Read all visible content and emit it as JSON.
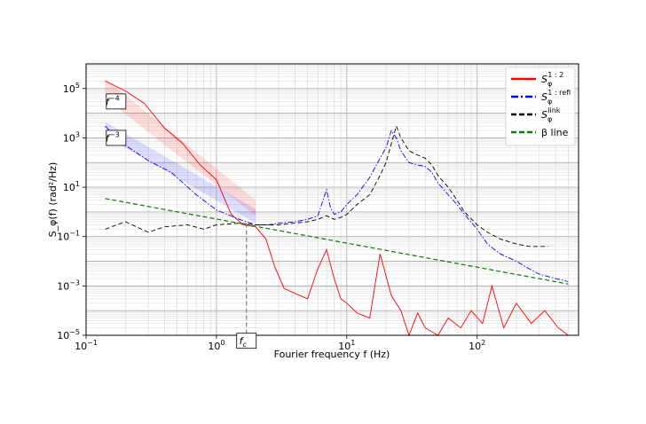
{
  "chart_data": {
    "type": "line",
    "title": "",
    "xlabel": "Fourier frequency f (Hz)",
    "ylabel": "S_φ(f) (rad²/Hz)",
    "xscale": "log",
    "yscale": "log",
    "xlim": [
      0.1,
      600
    ],
    "ylim": [
      1e-05,
      1000000
    ],
    "grid": true,
    "legend_position": "top-right",
    "x_ticks": [
      {
        "value": 0.1,
        "base": "10",
        "exp": "−1"
      },
      {
        "value": 1,
        "base": "10",
        "exp": "0"
      },
      {
        "value": 10,
        "base": "10",
        "exp": "1"
      },
      {
        "value": 100,
        "base": "10",
        "exp": "2"
      }
    ],
    "y_ticks": [
      {
        "value": 1e-05,
        "base": "10",
        "exp": "−5"
      },
      {
        "value": 0.001,
        "base": "10",
        "exp": "−3"
      },
      {
        "value": 0.1,
        "base": "10",
        "exp": "−1"
      },
      {
        "value": 10,
        "base": "10",
        "exp": "1"
      },
      {
        "value": 1000,
        "base": "10",
        "exp": "3"
      },
      {
        "value": 100000,
        "base": "10",
        "exp": "5"
      }
    ],
    "series": [
      {
        "name": "S_φ^{1:2}",
        "legend_main": "S",
        "legend_sub": "φ",
        "legend_sup": "1 : 2",
        "color": "#ff0000",
        "style": "solid",
        "x": [
          0.14,
          0.2,
          0.28,
          0.4,
          0.55,
          0.75,
          1.0,
          1.3,
          1.6,
          2.0,
          2.4,
          2.8,
          3.3,
          4.0,
          5.0,
          6.0,
          7.0,
          8.0,
          9.0,
          10,
          12,
          15,
          18,
          22,
          26,
          30,
          35,
          40,
          50,
          60,
          75,
          90,
          110,
          130,
          160,
          200,
          260,
          330,
          420,
          500
        ],
        "y": [
          200000,
          80000,
          25000,
          2500,
          600,
          80,
          20,
          0.8,
          0.3,
          0.25,
          0.08,
          0.006,
          0.0008,
          0.0005,
          0.0003,
          0.005,
          0.03,
          0.002,
          0.0003,
          0.0002,
          8e-05,
          5e-05,
          0.02,
          0.0004,
          0.0001,
          1e-05,
          8e-05,
          2e-05,
          1e-05,
          5e-05,
          2e-05,
          0.0001,
          3e-05,
          0.001,
          2e-05,
          0.0002,
          3e-05,
          0.0001,
          2e-05,
          1e-05
        ]
      },
      {
        "name": "S_φ^{1:refi}",
        "legend_main": "S",
        "legend_sub": "φ",
        "legend_sup": "1 : refi",
        "color": "#0000ff",
        "style": "dashdot",
        "x": [
          0.14,
          0.2,
          0.3,
          0.45,
          0.7,
          1.0,
          1.5,
          2.0,
          2.5,
          3.0,
          4.0,
          5.0,
          6.0,
          7.0,
          7.5,
          8.0,
          9.0,
          10,
          12,
          15,
          18,
          20,
          22,
          24,
          26,
          30,
          35,
          40,
          45,
          50,
          60,
          70,
          80,
          100,
          120,
          150,
          200,
          250,
          300,
          400,
          500
        ],
        "y": [
          3000,
          500,
          120,
          40,
          5,
          1.2,
          0.5,
          0.3,
          0.3,
          0.35,
          0.4,
          0.5,
          0.7,
          8,
          1.5,
          0.8,
          1.0,
          2.0,
          5.0,
          25,
          150,
          400,
          2000,
          1000,
          300,
          100,
          80,
          70,
          40,
          15,
          5,
          2.0,
          0.8,
          0.2,
          0.05,
          0.02,
          0.01,
          0.005,
          0.003,
          0.002,
          0.0015
        ]
      },
      {
        "name": "S_φ^{link}",
        "legend_main": "S",
        "legend_sub": "φ",
        "legend_sup": "link",
        "color": "#000000",
        "style": "dashed",
        "x": [
          0.14,
          0.2,
          0.3,
          0.4,
          0.6,
          0.8,
          1.0,
          1.5,
          2.0,
          2.5,
          3.0,
          4.0,
          5.0,
          6.0,
          7.0,
          8.0,
          9.0,
          10,
          12,
          15,
          18,
          20,
          22,
          24,
          26,
          30,
          35,
          40,
          45,
          50,
          60,
          70,
          80,
          100,
          120,
          150,
          200,
          250,
          300,
          350
        ],
        "y": [
          0.2,
          0.4,
          0.15,
          0.25,
          0.3,
          0.2,
          0.3,
          0.35,
          0.3,
          0.3,
          0.3,
          0.35,
          0.4,
          0.5,
          0.7,
          0.5,
          0.6,
          0.8,
          2.0,
          5.0,
          30,
          100,
          600,
          3000,
          1000,
          300,
          200,
          150,
          80,
          30,
          10,
          3.0,
          1.0,
          0.3,
          0.15,
          0.08,
          0.05,
          0.04,
          0.04,
          0.04
        ]
      },
      {
        "name": "β line",
        "legend_main": "β line",
        "legend_sub": "",
        "legend_sup": "",
        "color": "#008000",
        "style": "dashed",
        "x": [
          0.14,
          500
        ],
        "y": [
          3.5,
          0.0012
        ]
      }
    ],
    "bands": [
      {
        "color": "#ff0000",
        "x": [
          0.14,
          2.0
        ],
        "lower": [
          40000,
          0.7
        ],
        "upper": [
          250000,
          3.0
        ]
      },
      {
        "color": "#0000ff",
        "x": [
          0.14,
          2.0
        ],
        "lower": [
          1200,
          0.35
        ],
        "upper": [
          4500,
          1.3
        ]
      }
    ],
    "annotations": [
      {
        "main": "f",
        "sup": "−4",
        "x": 0.17,
        "y": 30000
      },
      {
        "main": "f",
        "sup": "−3",
        "x": 0.17,
        "y": 1000
      },
      {
        "main": "f",
        "sub": "c",
        "x": 1.7,
        "y": 6e-06
      }
    ],
    "vlines": [
      {
        "x": 1.7,
        "y_top": 0.35,
        "color": "#808080",
        "style": "dashed"
      }
    ]
  }
}
